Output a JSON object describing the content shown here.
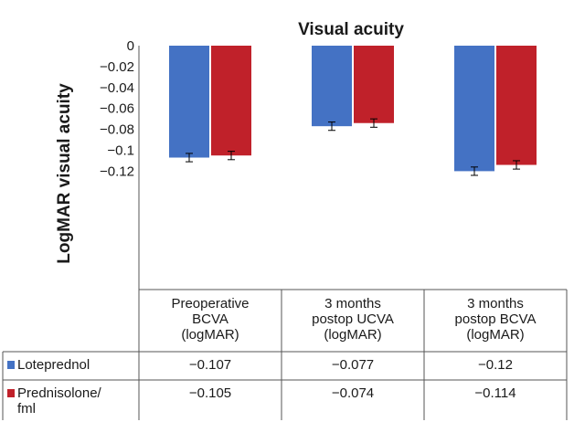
{
  "chart_data": {
    "type": "bar",
    "title": "Visual acuity",
    "ylabel": "LogMAR visual acuity",
    "ylim": [
      -0.14,
      0
    ],
    "yticks": [
      0,
      -0.02,
      -0.04,
      -0.06,
      -0.08,
      -0.1,
      -0.12
    ],
    "ytick_labels": [
      "0",
      "−0.02",
      "−0.04",
      "−0.06",
      "−0.08",
      "−0.1",
      "−0.12"
    ],
    "grid": false,
    "legend": "data table below chart",
    "categories": [
      [
        "Preoperative",
        "BCVA",
        "(logMAR)"
      ],
      [
        "3 months",
        "postop UCVA",
        "(logMAR)"
      ],
      [
        "3 months",
        "postop BCVA",
        "(logMAR)"
      ]
    ],
    "series": [
      {
        "name": "Loteprednol",
        "name_lines": [
          "Loteprednol"
        ],
        "color": "#4472c4",
        "values": [
          -0.107,
          -0.077,
          -0.12
        ],
        "error": [
          0.004,
          0.004,
          0.004
        ],
        "value_labels": [
          "−0.107",
          "−0.077",
          "−0.12"
        ]
      },
      {
        "name": "Prednisolone/fml",
        "name_lines": [
          "Prednisolone/",
          "fml"
        ],
        "color": "#c0212a",
        "values": [
          -0.105,
          -0.074,
          -0.114
        ],
        "error": [
          0.004,
          0.004,
          0.004
        ],
        "value_labels": [
          "−0.105",
          "−0.074",
          "−0.114"
        ]
      }
    ]
  }
}
